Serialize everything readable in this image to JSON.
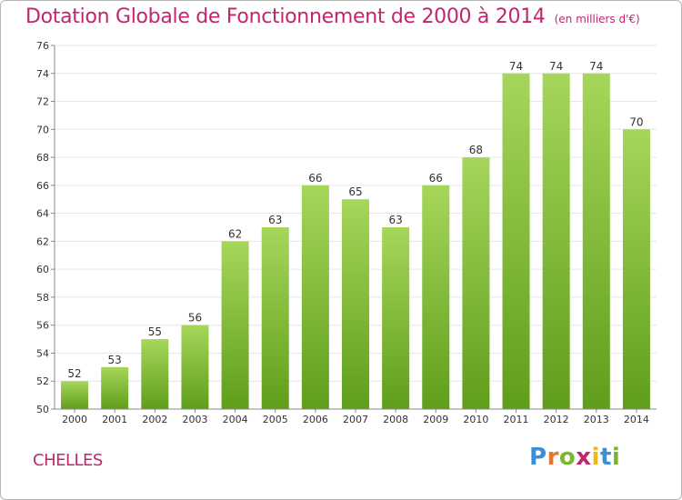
{
  "header": {
    "title": "Dotation Globale de Fonctionnement de 2000 à 2014",
    "unit_note": "(en milliers d'€)"
  },
  "footer": {
    "commune": "CHELLES",
    "logo": {
      "letters": [
        "P",
        "r",
        "o",
        "x",
        "i",
        "t",
        "i"
      ],
      "colors": [
        "#3a8fd6",
        "#e8732a",
        "#7ab82e",
        "#c0266e",
        "#f0b71c",
        "#3a8fd6",
        "#7ab82e"
      ]
    }
  },
  "chart_data": {
    "type": "bar",
    "categories": [
      "2000",
      "2001",
      "2002",
      "2003",
      "2004",
      "2005",
      "2006",
      "2007",
      "2008",
      "2009",
      "2010",
      "2011",
      "2012",
      "2013",
      "2014"
    ],
    "values": [
      52,
      53,
      55,
      56,
      62,
      63,
      66,
      65,
      63,
      66,
      68,
      74,
      74,
      74,
      70
    ],
    "value_labels": [
      "52",
      "53",
      "55",
      "56",
      "62",
      "63",
      "66",
      "65",
      "63",
      "66",
      "68",
      "74",
      "74",
      "74",
      "70"
    ],
    "ylim": [
      50,
      76
    ],
    "yticks": [
      50,
      52,
      54,
      56,
      58,
      60,
      62,
      64,
      66,
      68,
      70,
      72,
      74,
      76
    ],
    "ytick_labels": [
      "50",
      "52",
      "54",
      "56",
      "58",
      "60",
      "62",
      "64",
      "66",
      "68",
      "70",
      "72",
      "74",
      "76"
    ],
    "grid": true,
    "colors": {
      "bar_light": "#a6d65a",
      "bar_dark": "#5f9e1a",
      "grid": "#e6e6e6",
      "axis": "#888888"
    }
  }
}
